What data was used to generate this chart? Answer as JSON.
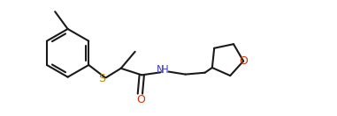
{
  "background_color": "#ffffff",
  "line_color": "#1a1a1a",
  "S_color": "#b8860b",
  "N_color": "#4444cc",
  "O_color": "#cc3300",
  "line_width": 1.5,
  "figsize": [
    3.81,
    1.32
  ],
  "dpi": 100,
  "xlim": [
    0,
    10
  ],
  "ylim": [
    0,
    3.4
  ]
}
